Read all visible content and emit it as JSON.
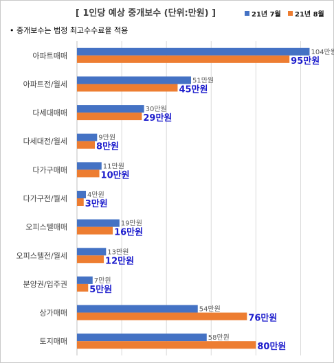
{
  "chart_data": {
    "type": "bar",
    "orientation": "horizontal",
    "title": "[ 1인당 예상 중개보수 (단위:만원) ]",
    "note": "• 중개보수는 법정 최고수수료율 적용",
    "legend_position": "top-right",
    "categories": [
      "아파트매매",
      "아파트전/월세",
      "다세대매매",
      "다세대전/월세",
      "다가구매매",
      "다가구전/월세",
      "오피스텔매매",
      "오피스텔전/월세",
      "분양권/입주권",
      "상가매매",
      "토지매매"
    ],
    "series": [
      {
        "name": "21년 7월",
        "color": "#4472c4",
        "values": [
          104,
          51,
          30,
          9,
          11,
          4,
          19,
          13,
          7,
          54,
          58
        ],
        "labels": [
          "104만원",
          "51만원",
          "30만원",
          "9만원",
          "11만원",
          "4만원",
          "19만원",
          "13만원",
          "7만원",
          "54만원",
          "58만원"
        ]
      },
      {
        "name": "21년 8월",
        "color": "#ed7d31",
        "values": [
          95,
          45,
          29,
          8,
          10,
          3,
          16,
          12,
          5,
          76,
          80
        ],
        "labels": [
          "95만원",
          "45만원",
          "29만원",
          "8만원",
          "10만원",
          "3만원",
          "16만원",
          "12만원",
          "5만원",
          "76만원",
          "80만원"
        ]
      }
    ],
    "xlim": [
      0,
      110
    ],
    "grid": true
  }
}
